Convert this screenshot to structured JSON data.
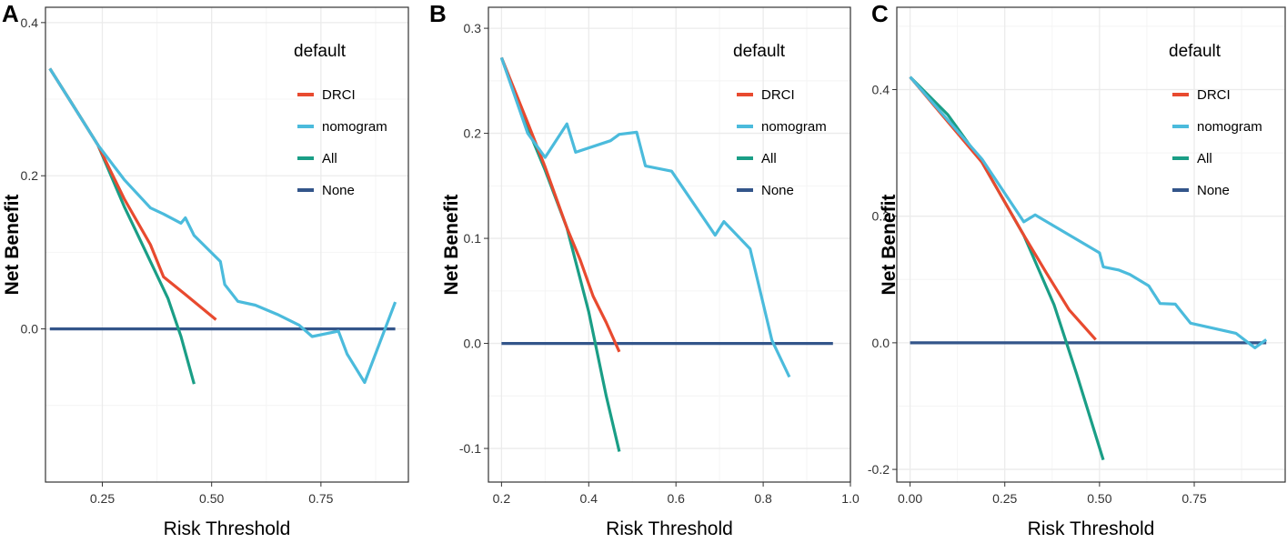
{
  "colors": {
    "DRCI": "#e84a2f",
    "nomogram": "#4bbbdc",
    "All": "#1a9e86",
    "None": "#33558a",
    "grid": "#ebebeb",
    "frame": "#333333"
  },
  "chart_data": [
    {
      "panel": "A",
      "type": "line",
      "xlabel": "Risk Threshold",
      "ylabel": "Net Benefit",
      "xlim": [
        0.12,
        0.95
      ],
      "ylim": [
        -0.2,
        0.42
      ],
      "x_ticks": [
        0.25,
        0.5,
        0.75
      ],
      "x_tick_labels": [
        "0.25",
        "0.50",
        "0.75"
      ],
      "y_ticks": [
        0.0,
        0.2,
        0.4
      ],
      "y_tick_labels": [
        "0.0",
        "0.2",
        "0.4"
      ],
      "legend": {
        "title": "default",
        "position": "top-right",
        "entries": [
          "DRCI",
          "nomogram",
          "All",
          "None"
        ]
      },
      "series": [
        {
          "name": "DRCI",
          "x": [
            0.13,
            0.24,
            0.3,
            0.36,
            0.39,
            0.44,
            0.51
          ],
          "y": [
            0.34,
            0.24,
            0.17,
            0.11,
            0.068,
            0.045,
            0.012
          ]
        },
        {
          "name": "nomogram",
          "x": [
            0.13,
            0.24,
            0.3,
            0.36,
            0.39,
            0.43,
            0.44,
            0.46,
            0.52,
            0.53,
            0.56,
            0.6,
            0.65,
            0.7,
            0.73,
            0.79,
            0.81,
            0.85,
            0.92
          ],
          "y": [
            0.34,
            0.24,
            0.195,
            0.158,
            0.15,
            0.138,
            0.145,
            0.122,
            0.088,
            0.058,
            0.036,
            0.031,
            0.019,
            0.005,
            -0.01,
            -0.003,
            -0.033,
            -0.07,
            0.035
          ]
        },
        {
          "name": "All",
          "x": [
            0.13,
            0.18,
            0.24,
            0.3,
            0.35,
            0.4,
            0.43,
            0.46
          ],
          "y": [
            0.34,
            0.295,
            0.24,
            0.16,
            0.1,
            0.04,
            -0.01,
            -0.072
          ]
        },
        {
          "name": "None",
          "x": [
            0.13,
            0.92
          ],
          "y": [
            0,
            0
          ]
        }
      ]
    },
    {
      "panel": "B",
      "type": "line",
      "xlabel": "Risk Threshold",
      "ylabel": "Net Benefit",
      "xlim": [
        0.17,
        1.0
      ],
      "ylim": [
        -0.132,
        0.32
      ],
      "x_ticks": [
        0.2,
        0.4,
        0.6,
        0.8,
        1.0
      ],
      "x_tick_labels": [
        "0.2",
        "0.4",
        "0.6",
        "0.8",
        "1.0"
      ],
      "y_ticks": [
        -0.1,
        0.0,
        0.1,
        0.2,
        0.3
      ],
      "y_tick_labels": [
        "-0.1",
        "0.0",
        "0.1",
        "0.2",
        "0.3"
      ],
      "legend": {
        "title": "default",
        "position": "top-right",
        "entries": [
          "DRCI",
          "nomogram",
          "All",
          "None"
        ]
      },
      "series": [
        {
          "name": "DRCI",
          "x": [
            0.2,
            0.26,
            0.3,
            0.35,
            0.38,
            0.41,
            0.44,
            0.47
          ],
          "y": [
            0.272,
            0.21,
            0.168,
            0.11,
            0.08,
            0.045,
            0.02,
            -0.008
          ]
        },
        {
          "name": "nomogram",
          "x": [
            0.2,
            0.26,
            0.3,
            0.35,
            0.37,
            0.45,
            0.47,
            0.51,
            0.53,
            0.59,
            0.69,
            0.71,
            0.77,
            0.82,
            0.86
          ],
          "y": [
            0.272,
            0.2,
            0.177,
            0.209,
            0.182,
            0.193,
            0.199,
            0.201,
            0.169,
            0.164,
            0.103,
            0.116,
            0.09,
            0.003,
            -0.032
          ]
        },
        {
          "name": "All",
          "x": [
            0.2,
            0.25,
            0.3,
            0.35,
            0.4,
            0.44,
            0.47
          ],
          "y": [
            0.272,
            0.215,
            0.165,
            0.11,
            0.03,
            -0.05,
            -0.103
          ]
        },
        {
          "name": "None",
          "x": [
            0.2,
            0.96
          ],
          "y": [
            0,
            0
          ]
        }
      ]
    },
    {
      "panel": "C",
      "type": "line",
      "xlabel": "Risk Threshold",
      "ylabel": "Net Benefit",
      "xlim": [
        -0.035,
        0.99
      ],
      "ylim": [
        -0.22,
        0.53
      ],
      "x_ticks": [
        0.0,
        0.25,
        0.5,
        0.75
      ],
      "x_tick_labels": [
        "0.00",
        "0.25",
        "0.50",
        "0.75"
      ],
      "y_ticks": [
        -0.2,
        0.0,
        0.2,
        0.4
      ],
      "y_tick_labels": [
        "-0.2",
        "0.0",
        "0.2",
        "0.4"
      ],
      "legend": {
        "title": "default",
        "position": "top-right",
        "entries": [
          "DRCI",
          "nomogram",
          "All",
          "None"
        ]
      },
      "series": [
        {
          "name": "DRCI",
          "x": [
            0.0,
            0.19,
            0.3,
            0.36,
            0.42,
            0.49
          ],
          "y": [
            0.42,
            0.285,
            0.17,
            0.11,
            0.052,
            0.005
          ]
        },
        {
          "name": "nomogram",
          "x": [
            0.0,
            0.19,
            0.3,
            0.33,
            0.5,
            0.51,
            0.55,
            0.58,
            0.63,
            0.66,
            0.7,
            0.74,
            0.86,
            0.91,
            0.94
          ],
          "y": [
            0.42,
            0.29,
            0.191,
            0.202,
            0.142,
            0.12,
            0.115,
            0.108,
            0.09,
            0.062,
            0.061,
            0.031,
            0.015,
            -0.008,
            0.005
          ]
        },
        {
          "name": "All",
          "x": [
            0.0,
            0.1,
            0.19,
            0.3,
            0.38,
            0.44,
            0.51
          ],
          "y": [
            0.42,
            0.36,
            0.285,
            0.17,
            0.06,
            -0.05,
            -0.185
          ]
        },
        {
          "name": "None",
          "x": [
            0.0,
            0.94
          ],
          "y": [
            0,
            0
          ]
        }
      ]
    }
  ]
}
